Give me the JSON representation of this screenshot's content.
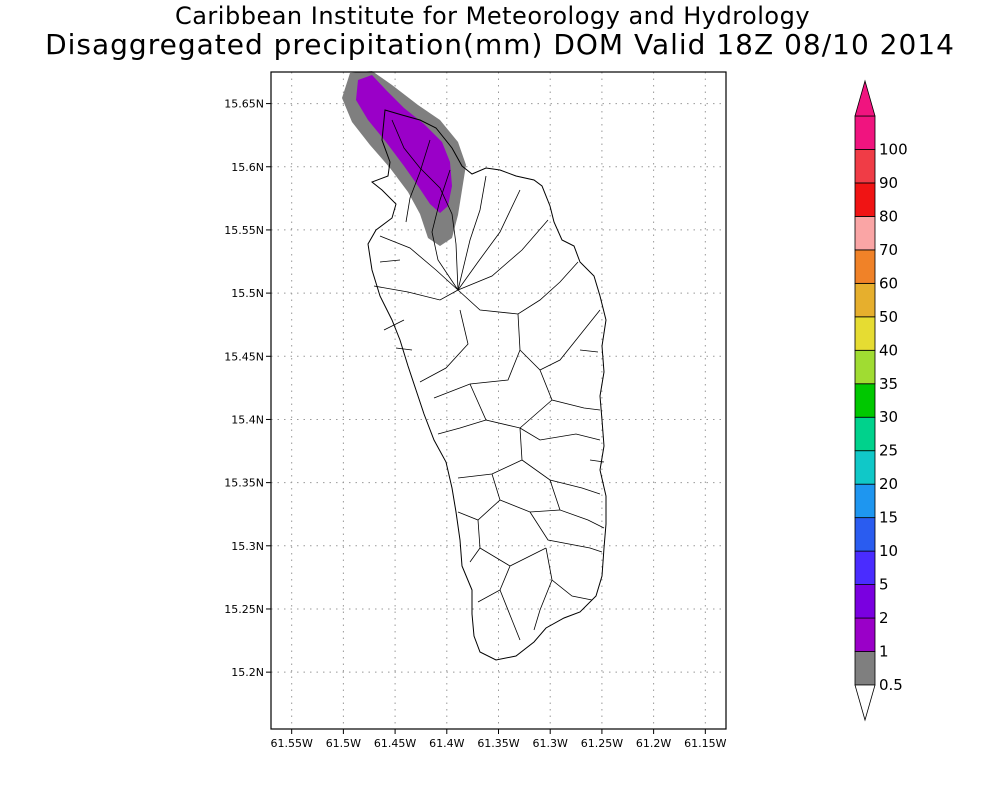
{
  "header": {
    "line1": "Caribbean Institute for Meteorology and Hydrology",
    "line2": "Disaggregated precipitation(mm) DOM Valid 18Z 08/10 2014"
  },
  "map": {
    "lon_range": [
      -61.57,
      -61.13
    ],
    "lat_range": [
      15.155,
      15.675
    ],
    "lat_ticks": [
      "15.65N",
      "15.6N",
      "15.55N",
      "15.5N",
      "15.45N",
      "15.4N",
      "15.35N",
      "15.3N",
      "15.25N",
      "15.2N"
    ],
    "lon_ticks": [
      "61.55W",
      "61.5W",
      "61.45W",
      "61.4W",
      "61.35W",
      "61.3W",
      "61.25W",
      "61.2W",
      "61.15W"
    ]
  },
  "colorbar": {
    "levels": [
      "0.5",
      "1",
      "2",
      "5",
      "10",
      "15",
      "20",
      "25",
      "30",
      "35",
      "40",
      "50",
      "60",
      "70",
      "80",
      "90",
      "100"
    ],
    "colors": [
      "#7f7f7f",
      "#9a00c8",
      "#7a00e0",
      "#4a2cff",
      "#2a5cf0",
      "#1e96f0",
      "#10c8c8",
      "#00d28c",
      "#00c800",
      "#a0dc32",
      "#e6dc32",
      "#e6af2d",
      "#f08228",
      "#faa5a5",
      "#f01414",
      "#f03c46",
      "#f0147f"
    ]
  }
}
